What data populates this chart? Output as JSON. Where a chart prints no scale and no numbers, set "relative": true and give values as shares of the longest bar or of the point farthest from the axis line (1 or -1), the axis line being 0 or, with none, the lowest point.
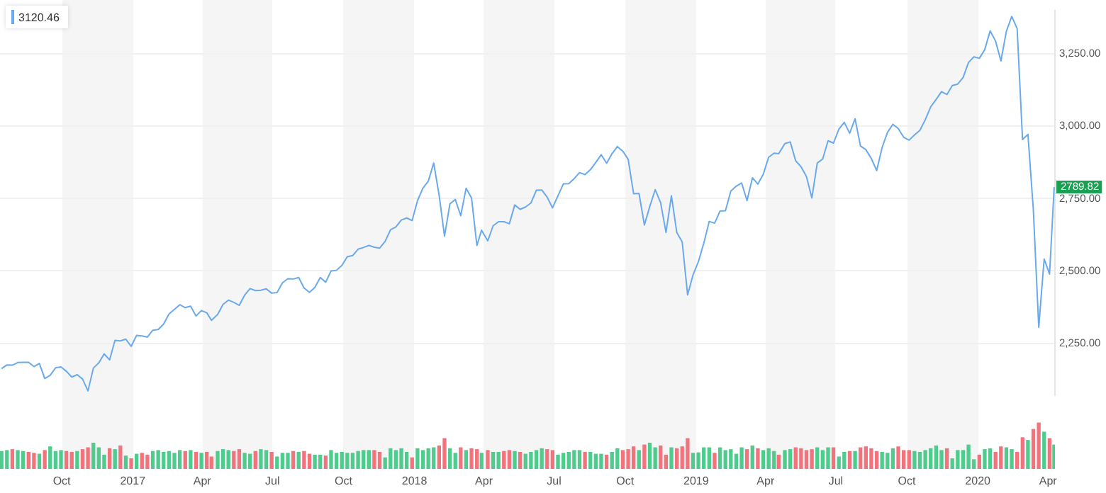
{
  "chart_data": [
    {
      "type": "line",
      "grid": "y",
      "tick_labels": "y",
      "annotations": [
        "3120.46",
        {
          "text": "2789.82",
          "x": "2020-04-09",
          "y": 2789.82
        }
      ],
      "xlim": [
        "2016-07-13",
        "2020-04-10"
      ],
      "ylim": [
        2070,
        3400
      ],
      "yticks": [
        {
          "value": 2250,
          "label": "2,250.00"
        },
        {
          "value": 2500,
          "label": "2,500.00"
        },
        {
          "value": 2750,
          "label": "2,750.00"
        },
        {
          "value": 3000,
          "label": "3,000.00"
        },
        {
          "value": 3250,
          "label": "3,250.00"
        }
      ],
      "x": [
        "2016-07-15",
        "2016-07-22",
        "2016-07-29",
        "2016-08-05",
        "2016-08-12",
        "2016-08-19",
        "2016-08-26",
        "2016-09-02",
        "2016-09-09",
        "2016-09-16",
        "2016-09-23",
        "2016-09-30",
        "2016-10-07",
        "2016-10-14",
        "2016-10-21",
        "2016-10-28",
        "2016-11-04",
        "2016-11-11",
        "2016-11-18",
        "2016-11-25",
        "2016-12-02",
        "2016-12-09",
        "2016-12-16",
        "2016-12-23",
        "2016-12-30",
        "2017-01-06",
        "2017-01-13",
        "2017-01-20",
        "2017-01-27",
        "2017-02-03",
        "2017-02-10",
        "2017-02-17",
        "2017-02-24",
        "2017-03-03",
        "2017-03-10",
        "2017-03-17",
        "2017-03-24",
        "2017-03-31",
        "2017-04-07",
        "2017-04-13",
        "2017-04-21",
        "2017-04-28",
        "2017-05-05",
        "2017-05-12",
        "2017-05-19",
        "2017-05-26",
        "2017-06-02",
        "2017-06-09",
        "2017-06-16",
        "2017-06-23",
        "2017-06-30",
        "2017-07-07",
        "2017-07-14",
        "2017-07-21",
        "2017-07-28",
        "2017-08-04",
        "2017-08-11",
        "2017-08-18",
        "2017-08-25",
        "2017-09-01",
        "2017-09-08",
        "2017-09-15",
        "2017-09-22",
        "2017-09-29",
        "2017-10-06",
        "2017-10-13",
        "2017-10-20",
        "2017-10-27",
        "2017-11-03",
        "2017-11-10",
        "2017-11-17",
        "2017-11-24",
        "2017-12-01",
        "2017-12-08",
        "2017-12-15",
        "2017-12-22",
        "2017-12-29",
        "2018-01-05",
        "2018-01-12",
        "2018-01-19",
        "2018-01-26",
        "2018-02-02",
        "2018-02-09",
        "2018-02-16",
        "2018-02-23",
        "2018-03-02",
        "2018-03-09",
        "2018-03-16",
        "2018-03-23",
        "2018-03-29",
        "2018-04-06",
        "2018-04-13",
        "2018-04-20",
        "2018-04-27",
        "2018-05-04",
        "2018-05-11",
        "2018-05-18",
        "2018-05-25",
        "2018-06-01",
        "2018-06-08",
        "2018-06-15",
        "2018-06-22",
        "2018-06-29",
        "2018-07-06",
        "2018-07-13",
        "2018-07-20",
        "2018-07-27",
        "2018-08-03",
        "2018-08-10",
        "2018-08-17",
        "2018-08-24",
        "2018-08-31",
        "2018-09-07",
        "2018-09-14",
        "2018-09-21",
        "2018-09-28",
        "2018-10-05",
        "2018-10-12",
        "2018-10-19",
        "2018-10-26",
        "2018-11-02",
        "2018-11-09",
        "2018-11-16",
        "2018-11-23",
        "2018-11-30",
        "2018-12-07",
        "2018-12-14",
        "2018-12-21",
        "2018-12-28",
        "2019-01-04",
        "2019-01-11",
        "2019-01-18",
        "2019-01-25",
        "2019-02-01",
        "2019-02-08",
        "2019-02-15",
        "2019-02-22",
        "2019-03-01",
        "2019-03-08",
        "2019-03-15",
        "2019-03-22",
        "2019-03-29",
        "2019-04-05",
        "2019-04-12",
        "2019-04-18",
        "2019-04-26",
        "2019-05-03",
        "2019-05-10",
        "2019-05-17",
        "2019-05-24",
        "2019-05-31",
        "2019-06-07",
        "2019-06-14",
        "2019-06-21",
        "2019-06-28",
        "2019-07-05",
        "2019-07-12",
        "2019-07-19",
        "2019-07-26",
        "2019-08-02",
        "2019-08-09",
        "2019-08-16",
        "2019-08-23",
        "2019-08-30",
        "2019-09-06",
        "2019-09-13",
        "2019-09-20",
        "2019-09-27",
        "2019-10-04",
        "2019-10-11",
        "2019-10-18",
        "2019-10-25",
        "2019-11-01",
        "2019-11-08",
        "2019-11-15",
        "2019-11-22",
        "2019-11-29",
        "2019-12-06",
        "2019-12-13",
        "2019-12-20",
        "2019-12-27",
        "2020-01-03",
        "2020-01-10",
        "2020-01-17",
        "2020-01-24",
        "2020-01-31",
        "2020-02-07",
        "2020-02-14",
        "2020-02-21",
        "2020-02-28",
        "2020-03-06",
        "2020-03-13",
        "2020-03-20",
        "2020-03-27",
        "2020-04-03",
        "2020-04-09"
      ],
      "series": [
        {
          "color": "#6aa9ec",
          "values": [
            2162,
            2175,
            2174,
            2183,
            2184,
            2184,
            2169,
            2180,
            2128,
            2139,
            2165,
            2168,
            2153,
            2133,
            2141,
            2126,
            2085,
            2164,
            2182,
            2213,
            2192,
            2260,
            2258,
            2264,
            2239,
            2277,
            2275,
            2271,
            2295,
            2297,
            2316,
            2351,
            2367,
            2383,
            2373,
            2378,
            2344,
            2363,
            2355,
            2329,
            2349,
            2384,
            2399,
            2391,
            2381,
            2416,
            2439,
            2432,
            2433,
            2438,
            2423,
            2425,
            2459,
            2473,
            2472,
            2477,
            2441,
            2426,
            2443,
            2477,
            2461,
            2500,
            2502,
            2519,
            2549,
            2553,
            2575,
            2581,
            2588,
            2582,
            2579,
            2602,
            2642,
            2652,
            2676,
            2683,
            2674,
            2743,
            2786,
            2810,
            2873,
            2762,
            2620,
            2732,
            2747,
            2691,
            2786,
            2752,
            2588,
            2641,
            2604,
            2656,
            2670,
            2670,
            2663,
            2728,
            2713,
            2721,
            2735,
            2779,
            2780,
            2755,
            2718,
            2760,
            2801,
            2802,
            2819,
            2840,
            2833,
            2850,
            2875,
            2902,
            2872,
            2905,
            2930,
            2914,
            2886,
            2767,
            2768,
            2659,
            2723,
            2781,
            2736,
            2633,
            2760,
            2633,
            2600,
            2417,
            2486,
            2532,
            2596,
            2671,
            2665,
            2707,
            2708,
            2776,
            2793,
            2804,
            2743,
            2822,
            2800,
            2834,
            2893,
            2907,
            2905,
            2940,
            2946,
            2881,
            2860,
            2826,
            2752,
            2873,
            2887,
            2950,
            2942,
            2990,
            3014,
            2976,
            3026,
            2932,
            2919,
            2889,
            2847,
            2926,
            2979,
            3007,
            2992,
            2962,
            2952,
            2970,
            2986,
            3023,
            3067,
            3093,
            3120,
            3110,
            3141,
            3146,
            3169,
            3221,
            3240,
            3235,
            3265,
            3330,
            3295,
            3226,
            3328,
            3380,
            3338,
            2954,
            2972,
            2711,
            2305,
            2541,
            2489,
            2789.82
          ]
        }
      ]
    },
    {
      "type": "bar",
      "relative": true,
      "tick_labels": "x",
      "xlim": [
        "2016-07-13",
        "2020-04-10"
      ],
      "xticks": [
        {
          "value": "2016-10-01",
          "label": "Oct"
        },
        {
          "value": "2017-01-01",
          "label": "2017"
        },
        {
          "value": "2017-04-01",
          "label": "Apr"
        },
        {
          "value": "2017-07-01",
          "label": "Jul"
        },
        {
          "value": "2017-10-01",
          "label": "Oct"
        },
        {
          "value": "2018-01-01",
          "label": "2018"
        },
        {
          "value": "2018-04-01",
          "label": "Apr"
        },
        {
          "value": "2018-07-01",
          "label": "Jul"
        },
        {
          "value": "2018-10-01",
          "label": "Oct"
        },
        {
          "value": "2019-01-01",
          "label": "2019"
        },
        {
          "value": "2019-04-01",
          "label": "Apr"
        },
        {
          "value": "2019-07-01",
          "label": "Jul"
        },
        {
          "value": "2019-10-01",
          "label": "Oct"
        },
        {
          "value": "2020-01-01",
          "label": "2020"
        },
        {
          "value": "2020-04-01",
          "label": "Apr"
        }
      ],
      "x": [
        "2016-07-15",
        "2016-07-22",
        "2016-07-29",
        "2016-08-05",
        "2016-08-12",
        "2016-08-19",
        "2016-08-26",
        "2016-09-02",
        "2016-09-09",
        "2016-09-16",
        "2016-09-23",
        "2016-09-30",
        "2016-10-07",
        "2016-10-14",
        "2016-10-21",
        "2016-10-28",
        "2016-11-04",
        "2016-11-11",
        "2016-11-18",
        "2016-11-25",
        "2016-12-02",
        "2016-12-09",
        "2016-12-16",
        "2016-12-23",
        "2016-12-30",
        "2017-01-06",
        "2017-01-13",
        "2017-01-20",
        "2017-01-27",
        "2017-02-03",
        "2017-02-10",
        "2017-02-17",
        "2017-02-24",
        "2017-03-03",
        "2017-03-10",
        "2017-03-17",
        "2017-03-24",
        "2017-03-31",
        "2017-04-07",
        "2017-04-13",
        "2017-04-21",
        "2017-04-28",
        "2017-05-05",
        "2017-05-12",
        "2017-05-19",
        "2017-05-26",
        "2017-06-02",
        "2017-06-09",
        "2017-06-16",
        "2017-06-23",
        "2017-06-30",
        "2017-07-07",
        "2017-07-14",
        "2017-07-21",
        "2017-07-28",
        "2017-08-04",
        "2017-08-11",
        "2017-08-18",
        "2017-08-25",
        "2017-09-01",
        "2017-09-08",
        "2017-09-15",
        "2017-09-22",
        "2017-09-29",
        "2017-10-06",
        "2017-10-13",
        "2017-10-20",
        "2017-10-27",
        "2017-11-03",
        "2017-11-10",
        "2017-11-17",
        "2017-11-24",
        "2017-12-01",
        "2017-12-08",
        "2017-12-15",
        "2017-12-22",
        "2017-12-29",
        "2018-01-05",
        "2018-01-12",
        "2018-01-19",
        "2018-01-26",
        "2018-02-02",
        "2018-02-09",
        "2018-02-16",
        "2018-02-23",
        "2018-03-02",
        "2018-03-09",
        "2018-03-16",
        "2018-03-23",
        "2018-03-29",
        "2018-04-06",
        "2018-04-13",
        "2018-04-20",
        "2018-04-27",
        "2018-05-04",
        "2018-05-11",
        "2018-05-18",
        "2018-05-25",
        "2018-06-01",
        "2018-06-08",
        "2018-06-15",
        "2018-06-22",
        "2018-06-29",
        "2018-07-06",
        "2018-07-13",
        "2018-07-20",
        "2018-07-27",
        "2018-08-03",
        "2018-08-10",
        "2018-08-17",
        "2018-08-24",
        "2018-08-31",
        "2018-09-07",
        "2018-09-14",
        "2018-09-21",
        "2018-09-28",
        "2018-10-05",
        "2018-10-12",
        "2018-10-19",
        "2018-10-26",
        "2018-11-02",
        "2018-11-09",
        "2018-11-16",
        "2018-11-23",
        "2018-11-30",
        "2018-12-07",
        "2018-12-14",
        "2018-12-21",
        "2018-12-28",
        "2019-01-04",
        "2019-01-11",
        "2019-01-18",
        "2019-01-25",
        "2019-02-01",
        "2019-02-08",
        "2019-02-15",
        "2019-02-22",
        "2019-03-01",
        "2019-03-08",
        "2019-03-15",
        "2019-03-22",
        "2019-03-29",
        "2019-04-05",
        "2019-04-12",
        "2019-04-18",
        "2019-04-26",
        "2019-05-03",
        "2019-05-10",
        "2019-05-17",
        "2019-05-24",
        "2019-05-31",
        "2019-06-07",
        "2019-06-14",
        "2019-06-21",
        "2019-06-28",
        "2019-07-05",
        "2019-07-12",
        "2019-07-19",
        "2019-07-26",
        "2019-08-02",
        "2019-08-09",
        "2019-08-16",
        "2019-08-23",
        "2019-08-30",
        "2019-09-06",
        "2019-09-13",
        "2019-09-20",
        "2019-09-27",
        "2019-10-04",
        "2019-10-11",
        "2019-10-18",
        "2019-10-25",
        "2019-11-01",
        "2019-11-08",
        "2019-11-15",
        "2019-11-22",
        "2019-11-29",
        "2019-12-06",
        "2019-12-13",
        "2019-12-20",
        "2019-12-27",
        "2020-01-03",
        "2020-01-10",
        "2020-01-17",
        "2020-01-24",
        "2020-01-31",
        "2020-02-07",
        "2020-02-14",
        "2020-02-21",
        "2020-02-28",
        "2020-03-06",
        "2020-03-13",
        "2020-03-20",
        "2020-03-27",
        "2020-04-03",
        "2020-04-09"
      ],
      "values": [
        0.38,
        0.4,
        0.42,
        0.4,
        0.38,
        0.36,
        0.34,
        0.32,
        0.4,
        0.48,
        0.38,
        0.4,
        0.38,
        0.36,
        0.38,
        0.42,
        0.46,
        0.56,
        0.46,
        0.3,
        0.44,
        0.42,
        0.5,
        0.28,
        0.22,
        0.32,
        0.34,
        0.3,
        0.38,
        0.4,
        0.36,
        0.38,
        0.34,
        0.4,
        0.38,
        0.4,
        0.36,
        0.34,
        0.36,
        0.26,
        0.38,
        0.42,
        0.4,
        0.38,
        0.42,
        0.34,
        0.32,
        0.38,
        0.42,
        0.4,
        0.36,
        0.26,
        0.34,
        0.34,
        0.38,
        0.36,
        0.38,
        0.32,
        0.3,
        0.3,
        0.28,
        0.4,
        0.34,
        0.36,
        0.34,
        0.34,
        0.38,
        0.4,
        0.4,
        0.4,
        0.36,
        0.24,
        0.44,
        0.4,
        0.44,
        0.36,
        0.24,
        0.44,
        0.4,
        0.44,
        0.46,
        0.5,
        0.66,
        0.44,
        0.34,
        0.46,
        0.4,
        0.44,
        0.42,
        0.34,
        0.4,
        0.36,
        0.36,
        0.38,
        0.4,
        0.38,
        0.36,
        0.32,
        0.36,
        0.4,
        0.44,
        0.42,
        0.4,
        0.3,
        0.34,
        0.36,
        0.4,
        0.4,
        0.36,
        0.36,
        0.32,
        0.32,
        0.3,
        0.36,
        0.44,
        0.4,
        0.42,
        0.48,
        0.4,
        0.52,
        0.56,
        0.46,
        0.5,
        0.3,
        0.46,
        0.44,
        0.48,
        0.66,
        0.34,
        0.35,
        0.46,
        0.46,
        0.34,
        0.46,
        0.4,
        0.42,
        0.32,
        0.46,
        0.42,
        0.5,
        0.44,
        0.4,
        0.44,
        0.38,
        0.3,
        0.4,
        0.42,
        0.46,
        0.44,
        0.4,
        0.42,
        0.46,
        0.4,
        0.46,
        0.46,
        0.26,
        0.36,
        0.38,
        0.38,
        0.46,
        0.48,
        0.44,
        0.38,
        0.36,
        0.34,
        0.44,
        0.48,
        0.4,
        0.4,
        0.38,
        0.36,
        0.4,
        0.44,
        0.5,
        0.4,
        0.44,
        0.22,
        0.4,
        0.4,
        0.52,
        0.2,
        0.3,
        0.42,
        0.44,
        0.36,
        0.48,
        0.46,
        0.42,
        0.36,
        0.68,
        0.62,
        0.86,
        1.0,
        0.8,
        0.66,
        0.52
      ],
      "colors": [
        "#4ecb8d",
        "#4ecb8d",
        "#f2737c",
        "#4ecb8d",
        "#4ecb8d",
        "#f2737c",
        "#f2737c",
        "#4ecb8d",
        "#f2737c",
        "#4ecb8d",
        "#4ecb8d",
        "#4ecb8d",
        "#f2737c",
        "#f2737c",
        "#4ecb8d",
        "#f2737c",
        "#f2737c",
        "#4ecb8d",
        "#4ecb8d",
        "#4ecb8d",
        "#f2737c",
        "#4ecb8d",
        "#f2737c",
        "#4ecb8d",
        "#f2737c",
        "#4ecb8d",
        "#f2737c",
        "#f2737c",
        "#4ecb8d",
        "#4ecb8d",
        "#4ecb8d",
        "#4ecb8d",
        "#4ecb8d",
        "#4ecb8d",
        "#f2737c",
        "#4ecb8d",
        "#f2737c",
        "#4ecb8d",
        "#f2737c",
        "#f2737c",
        "#4ecb8d",
        "#4ecb8d",
        "#4ecb8d",
        "#f2737c",
        "#f2737c",
        "#4ecb8d",
        "#4ecb8d",
        "#f2737c",
        "#4ecb8d",
        "#4ecb8d",
        "#f2737c",
        "#4ecb8d",
        "#4ecb8d",
        "#4ecb8d",
        "#f2737c",
        "#4ecb8d",
        "#f2737c",
        "#f2737c",
        "#4ecb8d",
        "#4ecb8d",
        "#f2737c",
        "#4ecb8d",
        "#4ecb8d",
        "#4ecb8d",
        "#4ecb8d",
        "#4ecb8d",
        "#4ecb8d",
        "#4ecb8d",
        "#4ecb8d",
        "#f2737c",
        "#f2737c",
        "#4ecb8d",
        "#4ecb8d",
        "#4ecb8d",
        "#4ecb8d",
        "#4ecb8d",
        "#f2737c",
        "#4ecb8d",
        "#4ecb8d",
        "#4ecb8d",
        "#4ecb8d",
        "#f2737c",
        "#f2737c",
        "#4ecb8d",
        "#4ecb8d",
        "#f2737c",
        "#4ecb8d",
        "#f2737c",
        "#f2737c",
        "#4ecb8d",
        "#f2737c",
        "#4ecb8d",
        "#4ecb8d",
        "#f2737c",
        "#f2737c",
        "#4ecb8d",
        "#f2737c",
        "#4ecb8d",
        "#4ecb8d",
        "#4ecb8d",
        "#4ecb8d",
        "#f2737c",
        "#f2737c",
        "#4ecb8d",
        "#4ecb8d",
        "#4ecb8d",
        "#4ecb8d",
        "#4ecb8d",
        "#f2737c",
        "#4ecb8d",
        "#4ecb8d",
        "#4ecb8d",
        "#f2737c",
        "#4ecb8d",
        "#4ecb8d",
        "#f2737c",
        "#f2737c",
        "#f2737c",
        "#4ecb8d",
        "#f2737c",
        "#4ecb8d",
        "#4ecb8d",
        "#f2737c",
        "#f2737c",
        "#4ecb8d",
        "#f2737c",
        "#f2737c",
        "#f2737c",
        "#4ecb8d",
        "#4ecb8d",
        "#4ecb8d",
        "#4ecb8d",
        "#f2737c",
        "#4ecb8d",
        "#4ecb8d",
        "#4ecb8d",
        "#4ecb8d",
        "#4ecb8d",
        "#f2737c",
        "#4ecb8d",
        "#f2737c",
        "#4ecb8d",
        "#4ecb8d",
        "#4ecb8d",
        "#f2737c",
        "#4ecb8d",
        "#4ecb8d",
        "#f2737c",
        "#f2737c",
        "#f2737c",
        "#f2737c",
        "#4ecb8d",
        "#4ecb8d",
        "#4ecb8d",
        "#f2737c",
        "#4ecb8d",
        "#4ecb8d",
        "#f2737c",
        "#4ecb8d",
        "#f2737c",
        "#f2737c",
        "#f2737c",
        "#f2737c",
        "#4ecb8d",
        "#4ecb8d",
        "#4ecb8d",
        "#f2737c",
        "#f2737c",
        "#f2737c",
        "#4ecb8d",
        "#4ecb8d",
        "#4ecb8d",
        "#4ecb8d",
        "#4ecb8d",
        "#4ecb8d",
        "#f2737c",
        "#4ecb8d",
        "#4ecb8d",
        "#4ecb8d",
        "#4ecb8d",
        "#4ecb8d",
        "#f2737c",
        "#4ecb8d",
        "#4ecb8d",
        "#f2737c",
        "#f2737c",
        "#4ecb8d",
        "#4ecb8d",
        "#f2737c",
        "#f2737c",
        "#4ecb8d",
        "#f2737c",
        "#f2737c",
        "#4ecb8d",
        "#f2737c",
        "#4ecb8d"
      ]
    }
  ]
}
